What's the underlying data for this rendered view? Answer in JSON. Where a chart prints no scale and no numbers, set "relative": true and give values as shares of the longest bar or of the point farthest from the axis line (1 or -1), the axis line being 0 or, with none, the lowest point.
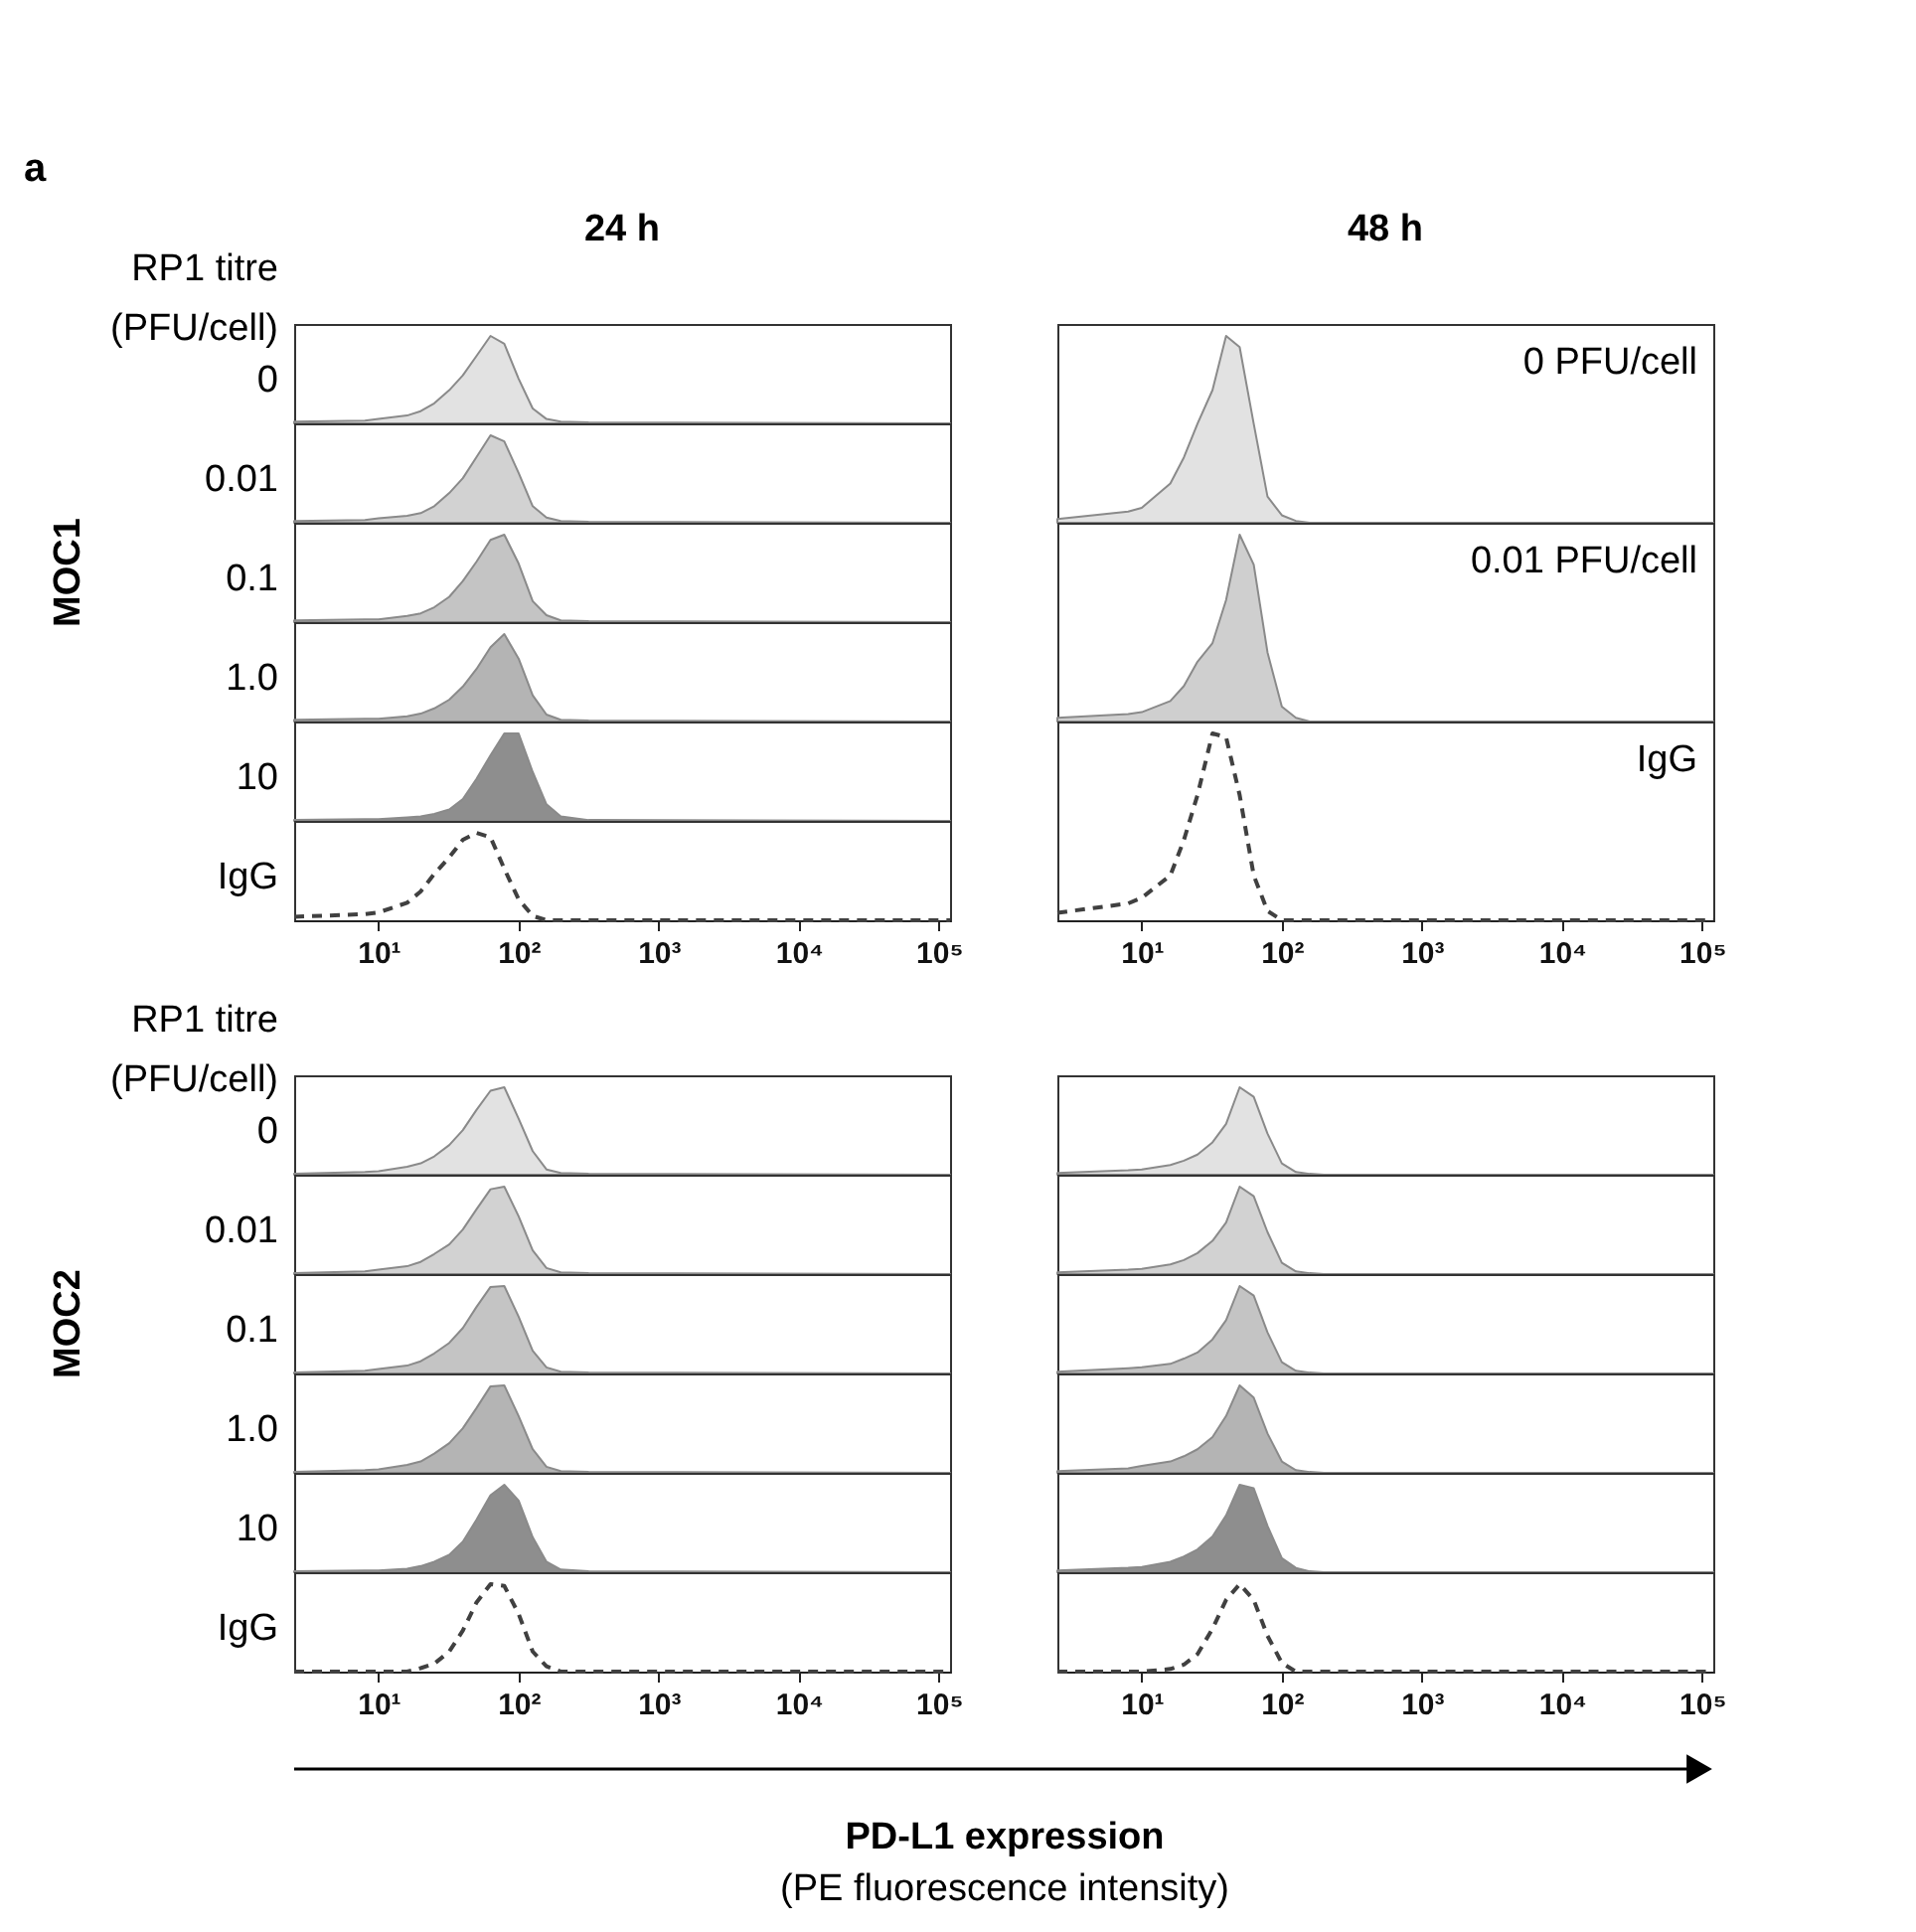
{
  "chart_data": [
    {
      "type": "area",
      "title": "24 h",
      "legend_title": "RP1 titre (PFU/cell)",
      "annotations": [
        "a"
      ],
      "relative": true,
      "log": "x",
      "xlim": [
        2.5,
        120000
      ],
      "tick_labels": false,
      "x": [
        2.5,
        8,
        10,
        16,
        20,
        25,
        32,
        40,
        50,
        63,
        79,
        100,
        126,
        158,
        200,
        316,
        120000
      ],
      "series": [
        {
          "name": "0",
          "color": "#e2e2e2",
          "values": [
            0.02,
            0.03,
            0.05,
            0.09,
            0.14,
            0.23,
            0.38,
            0.55,
            0.77,
            1.0,
            0.91,
            0.51,
            0.17,
            0.05,
            0.02,
            0.01,
            0
          ]
        }
      ]
    },
    {
      "type": "area",
      "relative": true,
      "log": "x",
      "xlim": [
        2.5,
        120000
      ],
      "tick_labels": false,
      "x": [
        2.5,
        8,
        10,
        16,
        20,
        25,
        32,
        40,
        50,
        63,
        79,
        100,
        126,
        158,
        200,
        316,
        120000
      ],
      "series": [
        {
          "name": "0.01",
          "color": "#d2d2d2",
          "values": [
            0.02,
            0.03,
            0.05,
            0.08,
            0.11,
            0.19,
            0.34,
            0.51,
            0.75,
            1.0,
            0.93,
            0.57,
            0.19,
            0.06,
            0.02,
            0.01,
            0
          ]
        }
      ]
    },
    {
      "type": "area",
      "ylabel": "MOC1",
      "relative": true,
      "log": "x",
      "xlim": [
        2.5,
        120000
      ],
      "tick_labels": false,
      "x": [
        2.5,
        8,
        10,
        16,
        20,
        25,
        32,
        40,
        50,
        63,
        79,
        100,
        126,
        158,
        200,
        316,
        120000
      ],
      "series": [
        {
          "name": "0.1",
          "color": "#c4c4c4",
          "values": [
            0.02,
            0.03,
            0.03,
            0.07,
            0.1,
            0.17,
            0.29,
            0.47,
            0.69,
            0.94,
            1.0,
            0.67,
            0.24,
            0.08,
            0.02,
            0.01,
            0
          ]
        }
      ]
    },
    {
      "type": "area",
      "relative": true,
      "log": "x",
      "xlim": [
        2.5,
        120000
      ],
      "tick_labels": false,
      "x": [
        2.5,
        8,
        10,
        16,
        20,
        25,
        32,
        40,
        50,
        63,
        79,
        100,
        126,
        158,
        200,
        316,
        120000
      ],
      "series": [
        {
          "name": "1.0",
          "color": "#b4b4b4",
          "values": [
            0.02,
            0.03,
            0.03,
            0.06,
            0.09,
            0.15,
            0.25,
            0.4,
            0.6,
            0.85,
            1.0,
            0.72,
            0.3,
            0.08,
            0.02,
            0.01,
            0
          ]
        }
      ]
    },
    {
      "type": "area",
      "relative": true,
      "log": "x",
      "xlim": [
        2.5,
        120000
      ],
      "tick_labels": false,
      "x": [
        2.5,
        8,
        10,
        16,
        20,
        25,
        32,
        40,
        50,
        63,
        79,
        100,
        126,
        158,
        200,
        316,
        120000
      ],
      "series": [
        {
          "name": "10",
          "color": "#8e8e8e",
          "values": [
            0.01,
            0.02,
            0.02,
            0.04,
            0.05,
            0.08,
            0.13,
            0.25,
            0.48,
            0.75,
            1.0,
            1.0,
            0.56,
            0.19,
            0.05,
            0.01,
            0
          ]
        }
      ]
    },
    {
      "type": "line",
      "line_style": "dashed",
      "relative": true,
      "log": "x",
      "xlim": [
        2.5,
        120000
      ],
      "x": [
        2.5,
        8,
        10,
        16,
        20,
        25,
        32,
        40,
        50,
        63,
        79,
        100,
        126,
        158,
        200,
        316,
        120000
      ],
      "xticks": [
        {
          "value": 10,
          "label": "10¹"
        },
        {
          "value": 100,
          "label": "10²"
        },
        {
          "value": 1000,
          "label": "10³"
        },
        {
          "value": 10000,
          "label": "10⁴"
        },
        {
          "value": 100000,
          "label": "10⁵"
        }
      ],
      "series": [
        {
          "name": "IgG",
          "color": "#404040",
          "values": [
            0.04,
            0.07,
            0.09,
            0.2,
            0.33,
            0.53,
            0.72,
            0.92,
            1.0,
            0.95,
            0.59,
            0.24,
            0.05,
            0,
            0,
            0,
            0
          ]
        }
      ]
    },
    {
      "type": "area",
      "title": "48 h",
      "relative": true,
      "log": "x",
      "xlim": [
        2.5,
        120000
      ],
      "tick_labels": false,
      "x": [
        2.5,
        8,
        10,
        16,
        20,
        25,
        32,
        40,
        50,
        63,
        79,
        100,
        126,
        158,
        200,
        316,
        120000
      ],
      "series": [
        {
          "name": "0 PFU/cell",
          "color": "#e2e2e2",
          "values": [
            0.02,
            0.06,
            0.08,
            0.21,
            0.35,
            0.53,
            0.71,
            1.0,
            0.94,
            0.53,
            0.14,
            0.04,
            0.01,
            0,
            0,
            0,
            0
          ]
        }
      ]
    },
    {
      "type": "area",
      "relative": true,
      "log": "x",
      "xlim": [
        2.5,
        120000
      ],
      "tick_labels": false,
      "x": [
        2.5,
        8,
        10,
        16,
        20,
        25,
        32,
        40,
        50,
        63,
        79,
        100,
        126,
        158,
        200,
        316,
        120000
      ],
      "series": [
        {
          "name": "0.01 PFU/cell",
          "color": "#cfcfcf",
          "values": [
            0.02,
            0.04,
            0.05,
            0.11,
            0.19,
            0.32,
            0.42,
            0.65,
            1.0,
            0.84,
            0.37,
            0.08,
            0.02,
            0,
            0,
            0,
            0
          ]
        }
      ]
    },
    {
      "type": "line",
      "line_style": "dashed",
      "relative": true,
      "log": "x",
      "xlim": [
        2.5,
        120000
      ],
      "x": [
        2.5,
        8,
        10,
        16,
        20,
        25,
        32,
        40,
        50,
        63,
        79,
        100,
        126,
        158,
        200,
        316,
        120000
      ],
      "xticks": [
        {
          "value": 10,
          "label": "10¹"
        },
        {
          "value": 100,
          "label": "10²"
        },
        {
          "value": 1000,
          "label": "10³"
        },
        {
          "value": 10000,
          "label": "10⁴"
        },
        {
          "value": 100000,
          "label": "10⁵"
        }
      ],
      "series": [
        {
          "name": "IgG",
          "color": "#404040",
          "values": [
            0.04,
            0.09,
            0.12,
            0.24,
            0.43,
            0.67,
            1.0,
            0.98,
            0.67,
            0.24,
            0.05,
            0,
            0,
            0,
            0,
            0,
            0
          ]
        }
      ]
    },
    {
      "type": "area",
      "legend_title": "RP1 titre (PFU/cell)",
      "relative": true,
      "log": "x",
      "xlim": [
        2.5,
        120000
      ],
      "tick_labels": false,
      "x": [
        2.5,
        8,
        10,
        16,
        20,
        25,
        32,
        40,
        50,
        63,
        79,
        100,
        126,
        158,
        200,
        316,
        120000
      ],
      "series": [
        {
          "name": "0",
          "color": "#e2e2e2",
          "values": [
            0.01,
            0.03,
            0.04,
            0.09,
            0.13,
            0.21,
            0.34,
            0.51,
            0.74,
            0.96,
            1.0,
            0.64,
            0.27,
            0.06,
            0.02,
            0.01,
            0
          ]
        }
      ]
    },
    {
      "type": "area",
      "relative": true,
      "log": "x",
      "xlim": [
        2.5,
        120000
      ],
      "tick_labels": false,
      "x": [
        2.5,
        8,
        10,
        16,
        20,
        25,
        32,
        40,
        50,
        63,
        79,
        100,
        126,
        158,
        200,
        316,
        120000
      ],
      "series": [
        {
          "name": "0.01",
          "color": "#d2d2d2",
          "values": [
            0.01,
            0.03,
            0.05,
            0.09,
            0.14,
            0.23,
            0.34,
            0.51,
            0.74,
            0.97,
            1.0,
            0.66,
            0.27,
            0.07,
            0.02,
            0.01,
            0
          ]
        }
      ]
    },
    {
      "type": "area",
      "ylabel": "MOC2",
      "relative": true,
      "log": "x",
      "xlim": [
        2.5,
        120000
      ],
      "tick_labels": false,
      "x": [
        2.5,
        8,
        10,
        16,
        20,
        25,
        32,
        40,
        50,
        63,
        79,
        100,
        126,
        158,
        200,
        316,
        120000
      ],
      "series": [
        {
          "name": "0.1",
          "color": "#c4c4c4",
          "values": [
            0.01,
            0.03,
            0.05,
            0.09,
            0.14,
            0.23,
            0.35,
            0.52,
            0.76,
            0.99,
            1.0,
            0.65,
            0.26,
            0.07,
            0.02,
            0.01,
            0
          ]
        }
      ]
    },
    {
      "type": "area",
      "relative": true,
      "log": "x",
      "xlim": [
        2.5,
        120000
      ],
      "tick_labels": false,
      "x": [
        2.5,
        8,
        10,
        16,
        20,
        25,
        32,
        40,
        50,
        63,
        79,
        100,
        126,
        158,
        200,
        316,
        120000
      ],
      "series": [
        {
          "name": "1.0",
          "color": "#b4b4b4",
          "values": [
            0.01,
            0.03,
            0.04,
            0.09,
            0.13,
            0.22,
            0.34,
            0.51,
            0.74,
            0.99,
            1.0,
            0.65,
            0.27,
            0.07,
            0.02,
            0.01,
            0
          ]
        }
      ]
    },
    {
      "type": "area",
      "relative": true,
      "log": "x",
      "xlim": [
        2.5,
        120000
      ],
      "tick_labels": false,
      "x": [
        2.5,
        8,
        10,
        16,
        20,
        25,
        32,
        40,
        50,
        63,
        79,
        100,
        126,
        158,
        200,
        316,
        120000
      ],
      "series": [
        {
          "name": "10",
          "color": "#8e8e8e",
          "values": [
            0.01,
            0.02,
            0.02,
            0.04,
            0.07,
            0.12,
            0.2,
            0.35,
            0.6,
            0.88,
            1.0,
            0.82,
            0.4,
            0.12,
            0.03,
            0.01,
            0
          ]
        }
      ]
    },
    {
      "type": "line",
      "line_style": "dashed",
      "relative": true,
      "log": "x",
      "xlim": [
        2.5,
        120000
      ],
      "x": [
        2.5,
        8,
        10,
        16,
        20,
        25,
        32,
        40,
        50,
        63,
        79,
        100,
        126,
        158,
        200,
        316,
        120000
      ],
      "xticks": [
        {
          "value": 10,
          "label": "10¹"
        },
        {
          "value": 100,
          "label": "10²"
        },
        {
          "value": 1000,
          "label": "10³"
        },
        {
          "value": 10000,
          "label": "10⁴"
        },
        {
          "value": 100000,
          "label": "10⁵"
        }
      ],
      "series": [
        {
          "name": "IgG",
          "color": "#404040",
          "values": [
            0,
            0,
            0,
            0,
            0.04,
            0.09,
            0.23,
            0.47,
            0.79,
            1.0,
            0.98,
            0.66,
            0.23,
            0.06,
            0,
            0,
            0
          ]
        }
      ]
    },
    {
      "type": "area",
      "relative": true,
      "log": "x",
      "xlim": [
        2.5,
        120000
      ],
      "tick_labels": false,
      "x": [
        2.5,
        8,
        10,
        16,
        20,
        25,
        32,
        40,
        50,
        63,
        79,
        100,
        126,
        158,
        200,
        316,
        120000
      ],
      "series": [
        {
          "color": "#e2e2e2",
          "values": [
            0.02,
            0.05,
            0.06,
            0.11,
            0.16,
            0.23,
            0.37,
            0.58,
            1.0,
            0.89,
            0.47,
            0.13,
            0.03,
            0.01,
            0,
            0,
            0
          ]
        }
      ]
    },
    {
      "type": "area",
      "relative": true,
      "log": "x",
      "xlim": [
        2.5,
        120000
      ],
      "tick_labels": false,
      "x": [
        2.5,
        8,
        10,
        16,
        20,
        25,
        32,
        40,
        50,
        63,
        79,
        100,
        126,
        158,
        200,
        316,
        120000
      ],
      "series": [
        {
          "color": "#d2d2d2",
          "values": [
            0.02,
            0.05,
            0.06,
            0.11,
            0.16,
            0.24,
            0.38,
            0.59,
            1.0,
            0.89,
            0.48,
            0.13,
            0.03,
            0.01,
            0,
            0,
            0
          ]
        }
      ]
    },
    {
      "type": "area",
      "relative": true,
      "log": "x",
      "xlim": [
        2.5,
        120000
      ],
      "tick_labels": false,
      "x": [
        2.5,
        8,
        10,
        16,
        20,
        25,
        32,
        40,
        50,
        63,
        79,
        100,
        126,
        158,
        200,
        316,
        120000
      ],
      "series": [
        {
          "color": "#c4c4c4",
          "values": [
            0.02,
            0.06,
            0.07,
            0.11,
            0.17,
            0.24,
            0.39,
            0.61,
            1.0,
            0.89,
            0.47,
            0.13,
            0.03,
            0.01,
            0,
            0,
            0
          ]
        }
      ]
    },
    {
      "type": "area",
      "relative": true,
      "log": "x",
      "xlim": [
        2.5,
        120000
      ],
      "tick_labels": false,
      "x": [
        2.5,
        8,
        10,
        16,
        20,
        25,
        32,
        40,
        50,
        63,
        79,
        100,
        126,
        158,
        200,
        316,
        120000
      ],
      "series": [
        {
          "color": "#b4b4b4",
          "values": [
            0.02,
            0.05,
            0.08,
            0.13,
            0.19,
            0.27,
            0.41,
            0.65,
            1.0,
            0.86,
            0.45,
            0.13,
            0.03,
            0.01,
            0,
            0,
            0
          ]
        }
      ]
    },
    {
      "type": "area",
      "relative": true,
      "log": "x",
      "xlim": [
        2.5,
        120000
      ],
      "tick_labels": false,
      "x": [
        2.5,
        8,
        10,
        16,
        20,
        25,
        32,
        40,
        50,
        63,
        79,
        100,
        126,
        158,
        200,
        316,
        120000
      ],
      "series": [
        {
          "color": "#8e8e8e",
          "values": [
            0.02,
            0.05,
            0.06,
            0.12,
            0.18,
            0.26,
            0.41,
            0.65,
            1.0,
            0.96,
            0.53,
            0.16,
            0.05,
            0.01,
            0,
            0,
            0
          ]
        }
      ]
    },
    {
      "type": "line",
      "line_style": "dashed",
      "xlabel": "PD-L1 expression",
      "annotations": [
        "(PE fluorescence intensity)"
      ],
      "relative": true,
      "log": "x",
      "xlim": [
        2.5,
        120000
      ],
      "x": [
        2.5,
        8,
        10,
        16,
        20,
        25,
        32,
        40,
        50,
        63,
        79,
        100,
        126,
        158,
        200,
        316,
        120000
      ],
      "xticks": [
        {
          "value": 10,
          "label": "10¹"
        },
        {
          "value": 100,
          "label": "10²"
        },
        {
          "value": 1000,
          "label": "10³"
        },
        {
          "value": 10000,
          "label": "10⁴"
        },
        {
          "value": 100000,
          "label": "10⁵"
        }
      ],
      "series": [
        {
          "color": "#404040",
          "values": [
            0,
            0,
            0,
            0.03,
            0.08,
            0.2,
            0.49,
            0.82,
            1.0,
            0.82,
            0.41,
            0.1,
            0,
            0,
            0,
            0,
            0
          ]
        }
      ]
    }
  ]
}
